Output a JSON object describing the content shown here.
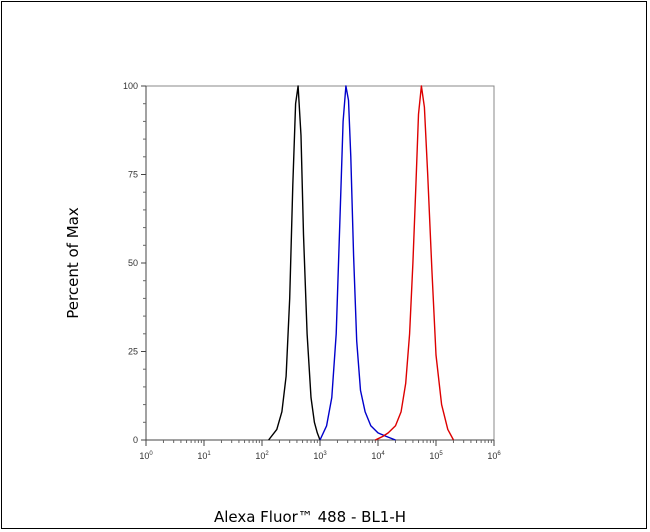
{
  "chart_data": {
    "type": "line",
    "xlabel": "Alexa Fluor™ 488 - BL1-H",
    "ylabel": "Percent of Max",
    "x_scale": "log",
    "xlim": [
      1,
      1000000
    ],
    "ylim": [
      0,
      100
    ],
    "x_ticks": [
      {
        "base": "10",
        "exp": "0"
      },
      {
        "base": "10",
        "exp": "1"
      },
      {
        "base": "10",
        "exp": "2"
      },
      {
        "base": "10",
        "exp": "3"
      },
      {
        "base": "10",
        "exp": "4"
      },
      {
        "base": "10",
        "exp": "5"
      },
      {
        "base": "10",
        "exp": "6"
      }
    ],
    "y_ticks": [
      "0",
      "25",
      "50",
      "75",
      "100"
    ],
    "grid": false,
    "series": [
      {
        "color": "#000000",
        "x": [
          130,
          180,
          220,
          260,
          300,
          340,
          380,
          420,
          470,
          520,
          600,
          700,
          800,
          900,
          1000
        ],
        "y": [
          0,
          3,
          8,
          18,
          40,
          72,
          95,
          100,
          86,
          58,
          30,
          12,
          5,
          2,
          0
        ]
      },
      {
        "color": "#0000cc",
        "x": [
          1000,
          1300,
          1600,
          1900,
          2200,
          2500,
          2800,
          3100,
          3400,
          3800,
          4300,
          5000,
          6000,
          7500,
          10000,
          14000,
          20000
        ],
        "y": [
          0,
          4,
          12,
          30,
          62,
          90,
          100,
          96,
          80,
          52,
          28,
          14,
          8,
          4,
          2,
          1,
          0
        ]
      },
      {
        "color": "#dd0000",
        "x": [
          9000,
          12000,
          15000,
          20000,
          25000,
          30000,
          35000,
          40000,
          45000,
          50000,
          56000,
          63000,
          72000,
          85000,
          100000,
          125000,
          160000,
          200000
        ],
        "y": [
          0,
          1,
          2,
          4,
          8,
          16,
          30,
          50,
          72,
          92,
          100,
          94,
          75,
          48,
          24,
          10,
          3,
          0
        ]
      }
    ]
  }
}
